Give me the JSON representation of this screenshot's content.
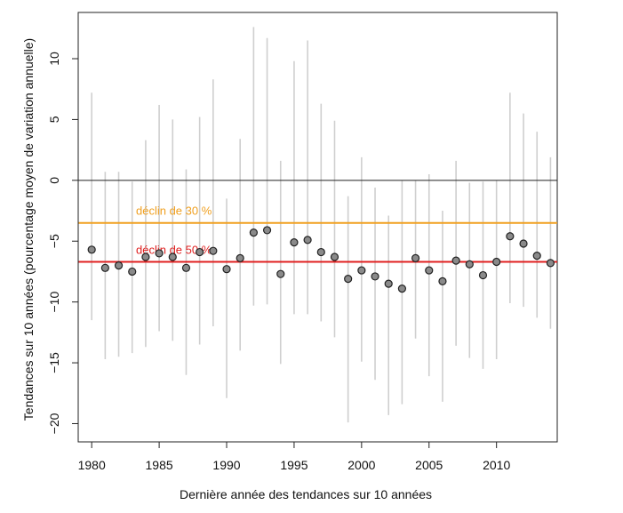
{
  "chart_data": {
    "type": "scatter",
    "title": "",
    "xlabel": "Dernière année des tendances sur 10 années",
    "ylabel": "Tendances sur 10 années (pourcentage moyen de variation annuelle)",
    "xlim": [
      1979,
      2014.5
    ],
    "ylim": [
      -21.5,
      13.8
    ],
    "x_ticks": [
      1980,
      1985,
      1990,
      1995,
      2000,
      2005,
      2010
    ],
    "x_tick_labels": [
      "1980",
      "1985",
      "1990",
      "1995",
      "2000",
      "2005",
      "2010"
    ],
    "y_ticks": [
      10,
      5,
      0,
      -5,
      -10,
      -15,
      -20
    ],
    "y_tick_labels": [
      "10",
      "5",
      "0",
      "−5",
      "−10",
      "−15",
      "−20"
    ],
    "grid": false,
    "reference_lines": [
      {
        "y": 0,
        "color": "#222222",
        "label": ""
      },
      {
        "y": -3.5,
        "color": "#f0a020",
        "label": "déclin de 30 %"
      },
      {
        "y": -6.7,
        "color": "#e02020",
        "label": "déclin de 50 %"
      }
    ],
    "series": [
      {
        "x": [
          1980,
          1981,
          1982,
          1983,
          1984,
          1985,
          1986,
          1987,
          1988,
          1989,
          1990,
          1991,
          1992,
          1993,
          1994,
          1995,
          1996,
          1997,
          1998,
          1999,
          2000,
          2001,
          2002,
          2003,
          2004,
          2005,
          2006,
          2007,
          2008,
          2009,
          2010,
          2011,
          2012,
          2013,
          2014
        ],
        "y": [
          -5.7,
          -7.2,
          -7.0,
          -7.5,
          -6.3,
          -6.0,
          -6.3,
          -7.2,
          -5.9,
          -5.8,
          -7.3,
          -6.4,
          -4.3,
          -4.1,
          -7.7,
          -5.1,
          -4.9,
          -5.9,
          -6.3,
          -8.1,
          -7.4,
          -7.9,
          -8.5,
          -8.9,
          -6.4,
          -7.4,
          -8.3,
          -6.6,
          -6.9,
          -7.8,
          -6.7,
          -4.6,
          -5.2,
          -6.2,
          -6.8
        ],
        "lower": [
          -11.5,
          -14.7,
          -14.5,
          -14.2,
          -13.7,
          -12.4,
          -13.2,
          -16.0,
          -13.5,
          -12.0,
          -17.9,
          -14.0,
          -10.3,
          -10.2,
          -15.1,
          -11.0,
          -11.0,
          -11.6,
          -12.9,
          -19.9,
          -14.9,
          -16.4,
          -19.3,
          -18.4,
          -13.0,
          -16.1,
          -18.2,
          -13.6,
          -14.6,
          -15.5,
          -14.7,
          -10.1,
          -10.4,
          -11.3,
          -12.2
        ],
        "upper": [
          7.2,
          0.7,
          0.7,
          -0.1,
          3.3,
          6.2,
          5.0,
          0.9,
          5.2,
          8.3,
          -1.5,
          3.4,
          12.6,
          11.7,
          1.6,
          9.8,
          11.5,
          6.3,
          4.9,
          -1.3,
          1.9,
          -0.6,
          -2.9,
          0.0,
          0.0,
          0.5,
          -2.5,
          1.6,
          -0.2,
          -0.1,
          0.0,
          7.2,
          5.5,
          4.0,
          1.9
        ]
      }
    ]
  }
}
